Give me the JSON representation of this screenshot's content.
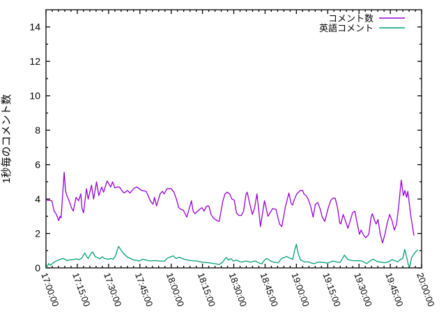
{
  "chart_data": {
    "type": "line",
    "title": "",
    "ylabel": "1秒毎のコメント数",
    "xlabel": "",
    "ylim": [
      0,
      15
    ],
    "x_range_minutes": [
      0,
      180
    ],
    "x_start_time": "17:00:00",
    "x_end_time": "20:00:00",
    "grid": false,
    "background": "#ffffff",
    "border_color": "#000000",
    "legend_position": "top-right-inside",
    "y_tick_labels": [
      "0",
      "2",
      "4",
      "6",
      "8",
      "10",
      "12",
      "14"
    ],
    "y_tick_values": [
      0,
      2,
      4,
      6,
      8,
      10,
      12,
      14
    ],
    "y_minor_tick_values": [
      1,
      3,
      5,
      7,
      9,
      11,
      13
    ],
    "x_tick_labels": [
      "17:00:00",
      "17:15:00",
      "17:30:00",
      "17:45:00",
      "18:00:00",
      "18:15:00",
      "18:30:00",
      "18:45:00",
      "19:00:00",
      "19:15:00",
      "19:30:00",
      "19:45:00",
      "20:00:00"
    ],
    "x_tick_minutes": [
      0,
      15,
      30,
      45,
      60,
      75,
      90,
      105,
      120,
      135,
      150,
      165,
      180
    ],
    "x_minor_tick_step_minutes": 3,
    "series": [
      {
        "name": "コメント数",
        "color": "#9400d3",
        "points": [
          [
            0,
            3.95
          ],
          [
            2.8,
            3.9
          ],
          [
            3.9,
            3.3
          ],
          [
            5,
            3.1
          ],
          [
            6.1,
            2.75
          ],
          [
            6.7,
            3.0
          ],
          [
            7.2,
            2.9
          ],
          [
            8.7,
            5.55
          ],
          [
            9.4,
            4.45
          ],
          [
            10,
            4.2
          ],
          [
            11.1,
            3.9
          ],
          [
            12.2,
            3.5
          ],
          [
            13.1,
            3.3
          ],
          [
            14.4,
            4.1
          ],
          [
            15.6,
            3.9
          ],
          [
            16.7,
            4.3
          ],
          [
            17.2,
            3.5
          ],
          [
            18,
            3.2
          ],
          [
            19.4,
            4.6
          ],
          [
            20.2,
            4.0
          ],
          [
            21.8,
            4.8
          ],
          [
            22.8,
            4.0
          ],
          [
            24.2,
            5.0
          ],
          [
            25.3,
            4.2
          ],
          [
            26.7,
            4.7
          ],
          [
            27.6,
            4.4
          ],
          [
            29.3,
            5.05
          ],
          [
            31,
            4.7
          ],
          [
            31.9,
            5.0
          ],
          [
            33,
            4.65
          ],
          [
            34.1,
            4.7
          ],
          [
            35.2,
            4.7
          ],
          [
            36.3,
            4.5
          ],
          [
            37.4,
            4.35
          ],
          [
            39.1,
            4.5
          ],
          [
            40.2,
            4.35
          ],
          [
            42.4,
            4.65
          ],
          [
            43.6,
            4.7
          ],
          [
            45.8,
            4.5
          ],
          [
            48,
            4.45
          ],
          [
            50.2,
            3.85
          ],
          [
            51.3,
            3.7
          ],
          [
            52,
            4.1
          ],
          [
            53,
            3.6
          ],
          [
            54.7,
            4.3
          ],
          [
            55.8,
            4.45
          ],
          [
            56.6,
            4.3
          ],
          [
            58,
            4.6
          ],
          [
            60,
            4.6
          ],
          [
            61.3,
            4.4
          ],
          [
            62.5,
            4.0
          ],
          [
            63.6,
            3.5
          ],
          [
            64.7,
            3.4
          ],
          [
            65.8,
            3.35
          ],
          [
            67.5,
            2.95
          ],
          [
            69.7,
            3.9
          ],
          [
            70.5,
            3.3
          ],
          [
            71.4,
            3.15
          ],
          [
            73.6,
            3.4
          ],
          [
            74.7,
            3.5
          ],
          [
            75.8,
            3.3
          ],
          [
            76.9,
            3.6
          ],
          [
            78,
            3.6
          ],
          [
            79.1,
            3.1
          ],
          [
            80.2,
            2.9
          ],
          [
            81.9,
            2.75
          ],
          [
            83,
            2.7
          ],
          [
            84.7,
            3.85
          ],
          [
            85.8,
            4.3
          ],
          [
            86.9,
            4.4
          ],
          [
            88,
            4.3
          ],
          [
            89.1,
            4.0
          ],
          [
            90.2,
            3.95
          ],
          [
            91.3,
            3.2
          ],
          [
            92.4,
            3.05
          ],
          [
            93.6,
            3.05
          ],
          [
            94.7,
            3.3
          ],
          [
            95.8,
            4.25
          ],
          [
            96.4,
            4.4
          ],
          [
            97.5,
            3.8
          ],
          [
            98.3,
            3.4
          ],
          [
            98.9,
            3.1
          ],
          [
            100,
            3.5
          ],
          [
            101.1,
            4.3
          ],
          [
            102.2,
            3.1
          ],
          [
            102.8,
            2.4
          ],
          [
            104.7,
            3.9
          ],
          [
            106.4,
            3.0
          ],
          [
            106.9,
            3.1
          ],
          [
            108.6,
            3.45
          ],
          [
            110.2,
            3.4
          ],
          [
            111.9,
            2.55
          ],
          [
            113,
            2.4
          ],
          [
            114.7,
            3.55
          ],
          [
            116.4,
            4.35
          ],
          [
            117.5,
            3.75
          ],
          [
            118.2,
            3.65
          ],
          [
            119.1,
            4.0
          ],
          [
            120.2,
            4.3
          ],
          [
            121.9,
            4.5
          ],
          [
            123,
            4.5
          ],
          [
            123.6,
            4.3
          ],
          [
            124.7,
            4.2
          ],
          [
            125.8,
            3.95
          ],
          [
            126.9,
            3.55
          ],
          [
            128,
            2.95
          ],
          [
            129.1,
            3.7
          ],
          [
            130.2,
            3.8
          ],
          [
            131.3,
            3.45
          ],
          [
            132.4,
            2.95
          ],
          [
            133.6,
            2.7
          ],
          [
            135.2,
            3.45
          ],
          [
            136.4,
            3.9
          ],
          [
            137.5,
            4.05
          ],
          [
            138.6,
            4.05
          ],
          [
            139.7,
            3.5
          ],
          [
            140.8,
            2.6
          ],
          [
            141.3,
            2.55
          ],
          [
            142.4,
            3.1
          ],
          [
            143.6,
            2.7
          ],
          [
            144.7,
            2.3
          ],
          [
            145.8,
            2.75
          ],
          [
            146.9,
            3.2
          ],
          [
            148,
            3.3
          ],
          [
            149.1,
            2.6
          ],
          [
            150.2,
            1.95
          ],
          [
            151,
            2.2
          ],
          [
            152.2,
            1.9
          ],
          [
            153.2,
            1.75
          ],
          [
            154.7,
            1.95
          ],
          [
            155.8,
            2.95
          ],
          [
            156.4,
            3.15
          ],
          [
            157.5,
            2.75
          ],
          [
            158.2,
            2.55
          ],
          [
            159.1,
            2.8
          ],
          [
            160.2,
            1.95
          ],
          [
            161.3,
            1.45
          ],
          [
            162.4,
            1.95
          ],
          [
            163.6,
            2.65
          ],
          [
            164.7,
            3.1
          ],
          [
            165.8,
            2.75
          ],
          [
            166.9,
            2.2
          ],
          [
            168,
            2.55
          ],
          [
            169.1,
            3.7
          ],
          [
            170.2,
            5.1
          ],
          [
            171.3,
            4.2
          ],
          [
            172,
            4.5
          ],
          [
            172.8,
            4.1
          ],
          [
            173.4,
            4.45
          ],
          [
            174.7,
            3.15
          ],
          [
            175.5,
            2.5
          ],
          [
            176.3,
            1.9
          ]
        ]
      },
      {
        "name": "英語コメント",
        "color": "#009e73",
        "points": [
          [
            0,
            0.02
          ],
          [
            0.8,
            0.13
          ],
          [
            1.3,
            0.25
          ],
          [
            2.2,
            0.15
          ],
          [
            3,
            0.25
          ],
          [
            4.1,
            0.35
          ],
          [
            5.2,
            0.42
          ],
          [
            6.3,
            0.47
          ],
          [
            7.4,
            0.52
          ],
          [
            8,
            0.55
          ],
          [
            9.1,
            0.5
          ],
          [
            10.2,
            0.42
          ],
          [
            11.3,
            0.47
          ],
          [
            12.4,
            0.47
          ],
          [
            13.6,
            0.5
          ],
          [
            14.7,
            0.52
          ],
          [
            15.8,
            0.48
          ],
          [
            16.9,
            0.55
          ],
          [
            17.4,
            0.62
          ],
          [
            18.6,
            0.87
          ],
          [
            19.7,
            0.62
          ],
          [
            20.2,
            0.55
          ],
          [
            21.9,
            0.9
          ],
          [
            22.4,
            0.92
          ],
          [
            23.6,
            0.65
          ],
          [
            24.7,
            0.6
          ],
          [
            25.8,
            0.52
          ],
          [
            26.9,
            0.65
          ],
          [
            28,
            0.55
          ],
          [
            30,
            0.5
          ],
          [
            31.1,
            0.55
          ],
          [
            32.2,
            0.5
          ],
          [
            33.3,
            0.7
          ],
          [
            34.8,
            1.25
          ],
          [
            35.6,
            1.1
          ],
          [
            36.7,
            0.9
          ],
          [
            37.8,
            0.77
          ],
          [
            38.9,
            0.63
          ],
          [
            40,
            0.58
          ],
          [
            41.1,
            0.5
          ],
          [
            42.2,
            0.45
          ],
          [
            43.3,
            0.45
          ],
          [
            44.4,
            0.4
          ],
          [
            45.6,
            0.45
          ],
          [
            46.4,
            0.5
          ],
          [
            48,
            0.45
          ],
          [
            50,
            0.4
          ],
          [
            52,
            0.43
          ],
          [
            54.7,
            0.4
          ],
          [
            56.9,
            0.4
          ],
          [
            58,
            0.55
          ],
          [
            59.1,
            0.62
          ],
          [
            61,
            0.7
          ],
          [
            62.2,
            0.55
          ],
          [
            64,
            0.62
          ],
          [
            65.2,
            0.55
          ],
          [
            66.3,
            0.5
          ],
          [
            68,
            0.45
          ],
          [
            70.2,
            0.42
          ],
          [
            72.4,
            0.4
          ],
          [
            74.7,
            0.33
          ],
          [
            78,
            0.3
          ],
          [
            81.3,
            0.24
          ],
          [
            83,
            0.2
          ],
          [
            84.7,
            0.33
          ],
          [
            85.8,
            0.54
          ],
          [
            86.4,
            0.6
          ],
          [
            87.5,
            0.45
          ],
          [
            88.6,
            0.54
          ],
          [
            89.7,
            0.4
          ],
          [
            91.3,
            0.45
          ],
          [
            93.6,
            0.33
          ],
          [
            95.8,
            0.4
          ],
          [
            98,
            0.33
          ],
          [
            100.2,
            0.4
          ],
          [
            102.4,
            0.27
          ],
          [
            103.5,
            0.24
          ],
          [
            104.7,
            0.45
          ],
          [
            105.8,
            0.55
          ],
          [
            107,
            0.45
          ],
          [
            108,
            0.38
          ],
          [
            109.1,
            0.33
          ],
          [
            111.3,
            0.3
          ],
          [
            113,
            0.56
          ],
          [
            114.1,
            0.6
          ],
          [
            115.2,
            0.67
          ],
          [
            116.3,
            0.6
          ],
          [
            117.4,
            0.54
          ],
          [
            118.3,
            0.5
          ],
          [
            119.1,
            1.0
          ],
          [
            120,
            1.37
          ],
          [
            120.8,
            0.87
          ],
          [
            121.9,
            0.47
          ],
          [
            123,
            0.4
          ],
          [
            124.1,
            0.33
          ],
          [
            125.2,
            0.36
          ],
          [
            126.3,
            0.33
          ],
          [
            127.4,
            0.27
          ],
          [
            128.5,
            0.25
          ],
          [
            129.6,
            0.3
          ],
          [
            130.7,
            0.33
          ],
          [
            131.9,
            0.33
          ],
          [
            134,
            0.3
          ],
          [
            135,
            0.28
          ],
          [
            136,
            0.33
          ],
          [
            137.5,
            0.4
          ],
          [
            139,
            0.35
          ],
          [
            141,
            0.32
          ],
          [
            143,
            0.74
          ],
          [
            144.7,
            0.48
          ],
          [
            147,
            0.42
          ],
          [
            149.5,
            0.42
          ],
          [
            151.3,
            0.4
          ],
          [
            153.8,
            0.25
          ],
          [
            155.8,
            0.45
          ],
          [
            156.9,
            0.5
          ],
          [
            158.6,
            0.37
          ],
          [
            160.8,
            0.33
          ],
          [
            162.4,
            0.3
          ],
          [
            164.2,
            0.35
          ],
          [
            165.8,
            0.48
          ],
          [
            167.5,
            0.4
          ],
          [
            168.6,
            0.35
          ],
          [
            169.7,
            0.48
          ],
          [
            171,
            0.55
          ],
          [
            171.9,
            1.07
          ],
          [
            173,
            0.55
          ],
          [
            173.6,
            0.2
          ],
          [
            174.3,
            0.07
          ],
          [
            175.2,
            0.6
          ],
          [
            176.3,
            0.8
          ],
          [
            178,
            1.05
          ]
        ]
      }
    ]
  },
  "legend": {
    "entries": [
      {
        "label": "コメント数",
        "color": "#9400d3"
      },
      {
        "label": "英語コメント",
        "color": "#009e73"
      }
    ]
  },
  "axis_titles": {
    "y": "1秒毎のコメント数"
  }
}
